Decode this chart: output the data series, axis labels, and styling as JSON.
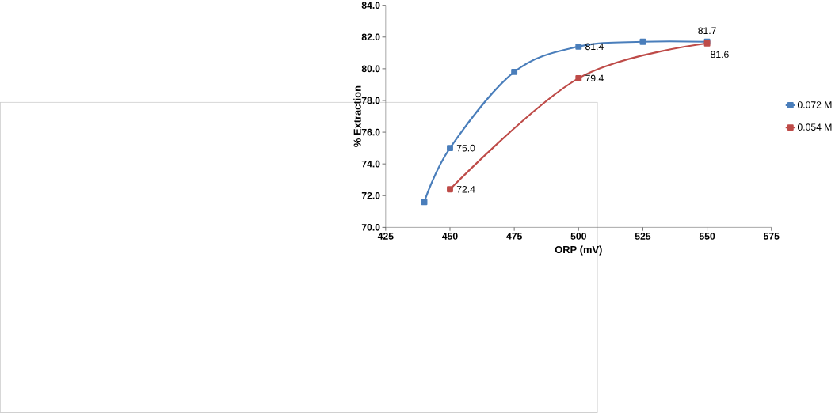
{
  "chart_data": {
    "type": "line",
    "xlabel": "ORP (mV)",
    "ylabel": "% Extraction",
    "xlim": [
      425,
      575
    ],
    "xticks": [
      425,
      450,
      475,
      500,
      525,
      550,
      575
    ],
    "ylim": [
      70,
      84
    ],
    "yticks": [
      {
        "value": 70,
        "label": "70.0"
      },
      {
        "value": 72,
        "label": "72.0"
      },
      {
        "value": 74,
        "label": "74.0"
      },
      {
        "value": 76,
        "label": "76.0"
      },
      {
        "value": 78,
        "label": "78.0"
      },
      {
        "value": 80,
        "label": "80.0"
      },
      {
        "value": 82,
        "label": "82.0"
      },
      {
        "value": 84,
        "label": "84.0"
      }
    ],
    "series": [
      {
        "name": "0.072 M",
        "color": "#4a7ebb",
        "x": [
          440,
          450,
          475,
          500,
          525,
          550
        ],
        "values": [
          71.6,
          75.0,
          79.8,
          81.4,
          81.7,
          81.7
        ],
        "value_labels": [
          null,
          "75.0",
          null,
          "81.4",
          null,
          "81.7"
        ]
      },
      {
        "name": "0.054 M",
        "color": "#be4b48",
        "x": [
          450,
          500,
          550
        ],
        "values": [
          72.4,
          79.4,
          81.6
        ],
        "value_labels": [
          "72.4",
          "79.4",
          "81.6"
        ]
      }
    ],
    "marker": "square",
    "legend": "right",
    "grid": false
  }
}
